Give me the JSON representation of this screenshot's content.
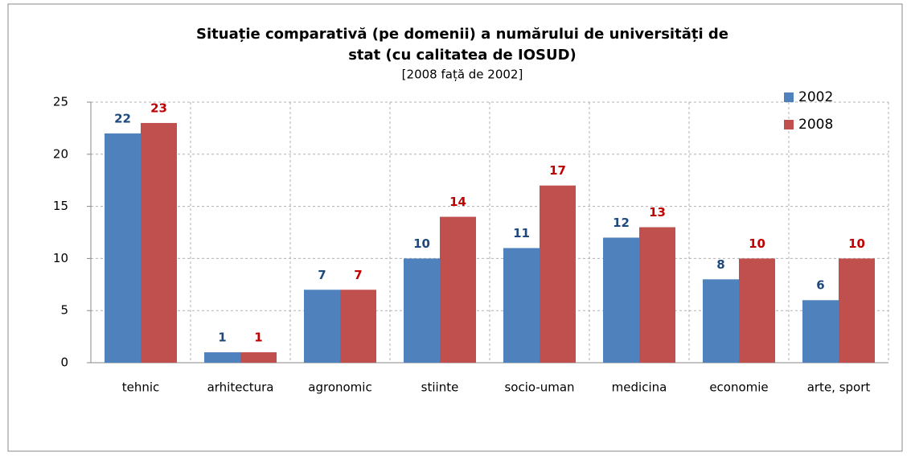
{
  "chart_data": {
    "type": "bar",
    "title": [
      "Situație comparativă (pe domenii) a numărului de universități de",
      "stat (cu calitatea de IOSUD)"
    ],
    "subtitle": "[2008 față de 2002]",
    "categories": [
      "tehnic",
      "arhitectura",
      "agronomic",
      "stiinte",
      "socio-uman",
      "medicina",
      "economie",
      "arte, sport"
    ],
    "series": [
      {
        "name": "2002",
        "color": "#4f81bd",
        "label_color": "#1f497d",
        "values": [
          22,
          1,
          7,
          10,
          11,
          12,
          8,
          6
        ]
      },
      {
        "name": "2008",
        "color": "#c0504d",
        "label_color": "#c00000",
        "values": [
          23,
          1,
          7,
          14,
          17,
          13,
          10,
          10
        ]
      }
    ],
    "ylim": [
      0,
      25
    ],
    "yticks": [
      0,
      5,
      10,
      15,
      20,
      25
    ],
    "grid": true,
    "legend": "upper right"
  }
}
